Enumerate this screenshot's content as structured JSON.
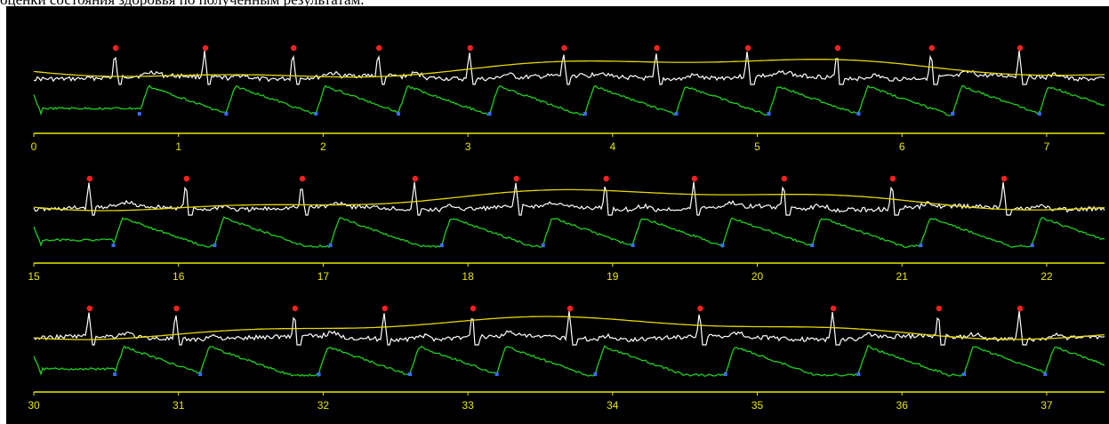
{
  "caption": "оценки состояния здоровья по полученным результатам.",
  "colors": {
    "background": "#000000",
    "axis": "#e8e800",
    "ecg_trace": "#ffffff",
    "pressure_trace": "#e6d600",
    "pulse_trace": "#1fd01f",
    "r_peak_marker": "#ff2020",
    "pulse_marker": "#3a6bff"
  },
  "chart_data": [
    {
      "type": "line",
      "title": "",
      "xlabel": "",
      "ylabel": "",
      "xlim": [
        0,
        7.4
      ],
      "x_ticks": [
        "0",
        "1",
        "2",
        "3",
        "4",
        "5",
        "6",
        "7"
      ],
      "series": [
        {
          "trace": "ecg",
          "r_peaks_x": [
            0.56,
            1.18,
            1.79,
            2.38,
            3.01,
            3.66,
            4.3,
            4.93,
            5.55,
            6.2,
            6.81
          ]
        },
        {
          "trace": "pulse",
          "markers_x": [
            0.73,
            1.33,
            1.95,
            2.52,
            3.15,
            3.81,
            4.44,
            5.08,
            5.7,
            6.35,
            6.95
          ]
        },
        {
          "trace": "pressure"
        }
      ]
    },
    {
      "type": "line",
      "title": "",
      "xlabel": "",
      "ylabel": "",
      "xlim": [
        15,
        22.4
      ],
      "x_ticks": [
        "15",
        "16",
        "17",
        "18",
        "19",
        "20",
        "21",
        "22"
      ],
      "series": [
        {
          "trace": "ecg",
          "r_peaks_x": [
            15.38,
            16.05,
            16.85,
            17.63,
            18.33,
            18.95,
            19.56,
            20.18,
            20.93,
            21.7
          ]
        },
        {
          "trace": "pulse",
          "markers_x": [
            15.55,
            16.25,
            17.05,
            17.82,
            18.52,
            19.14,
            19.76,
            20.38,
            21.13,
            21.9
          ]
        },
        {
          "trace": "pressure"
        }
      ]
    },
    {
      "type": "line",
      "title": "",
      "xlabel": "",
      "ylabel": "",
      "xlim": [
        30,
        37.4
      ],
      "x_ticks": [
        "30",
        "31",
        "32",
        "33",
        "34",
        "35",
        "36",
        "37"
      ],
      "series": [
        {
          "trace": "ecg",
          "r_peaks_x": [
            30.38,
            30.98,
            31.8,
            32.42,
            33.03,
            33.7,
            34.6,
            35.52,
            36.25,
            36.81
          ]
        },
        {
          "trace": "pulse",
          "markers_x": [
            30.56,
            31.15,
            31.97,
            32.6,
            33.2,
            33.88,
            34.78,
            35.7,
            36.43,
            36.99
          ]
        },
        {
          "trace": "pressure"
        }
      ]
    }
  ]
}
